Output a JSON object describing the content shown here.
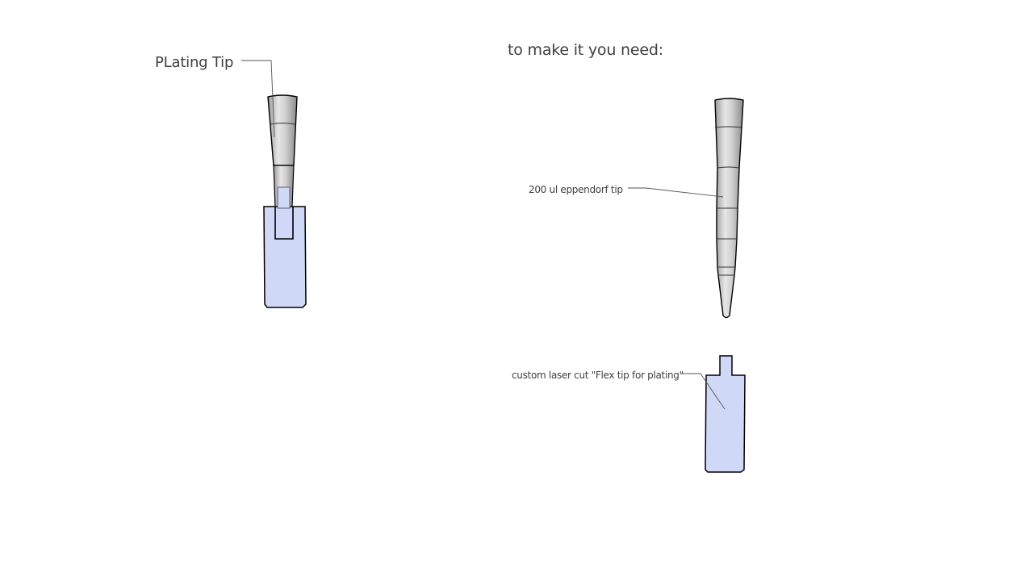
{
  "labels": {
    "plating_tip": "PLating Tip",
    "heading": "to make it you need:",
    "eppendorf_tip": "200 ul  eppendorf tip",
    "flex_tip": "custom laser cut \"Flex tip for plating\""
  },
  "colors": {
    "background": "#ffffff",
    "text": "#404040",
    "flex_fill": "#cfd8f7",
    "tip_gray": "#b8b8b8",
    "outline": "#000000"
  }
}
